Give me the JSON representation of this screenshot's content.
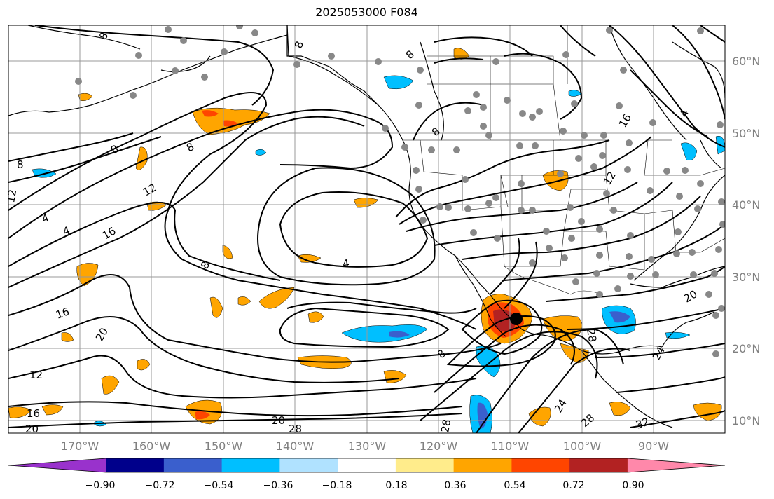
{
  "title": "2025053000 F084",
  "longitude_labels": [
    "170°W",
    "160°W",
    "150°W",
    "140°W",
    "130°W",
    "120°W",
    "110°W",
    "100°W",
    "90°W"
  ],
  "latitude_labels": [
    "60°N",
    "50°N",
    "40°N",
    "30°N",
    "20°N",
    "10°N"
  ],
  "colorbar": {
    "tick_labels": [
      "−0.90",
      "−0.72",
      "−0.54",
      "−0.36",
      "−0.18",
      "0.18",
      "0.36",
      "0.54",
      "0.72",
      "0.90"
    ],
    "colors": [
      "#9932cc",
      "#00008b",
      "#3a5fcd",
      "#00bfff",
      "#b0e2ff",
      "#ffffff",
      "#ffec8b",
      "#ffa500",
      "#ff4500",
      "#b22222",
      "#ff88aa"
    ]
  },
  "contour_labels": [
    "8",
    "8",
    "8",
    "8",
    "8",
    "8",
    "8",
    "8",
    "8",
    "4",
    "4",
    "4",
    "4",
    "12",
    "12",
    "12",
    "12",
    "16",
    "16",
    "16",
    "16",
    "20",
    "20",
    "20",
    "20",
    "24",
    "24",
    "28",
    "28",
    "28",
    "28",
    "32"
  ],
  "colors": {
    "contour": "#000000",
    "coastline": "#000000",
    "grid": "#999999",
    "station_dot": "#888888",
    "center_dot": "#000000"
  }
}
